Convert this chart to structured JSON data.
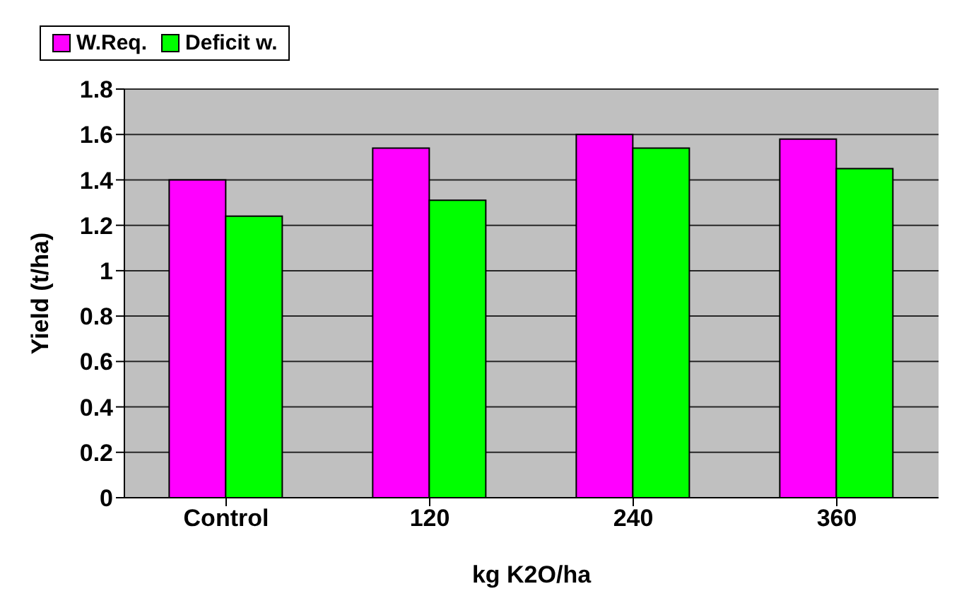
{
  "chart_data": {
    "type": "bar",
    "xlabel": "kg K2O/ha",
    "ylabel": "Yield (t/ha)",
    "categories": [
      "Control",
      "120",
      "240",
      "360"
    ],
    "series": [
      {
        "name": "W.Req.",
        "color": "#ff00ff",
        "values": [
          1.4,
          1.54,
          1.6,
          1.58
        ]
      },
      {
        "name": "Deficit w.",
        "color": "#00ff00",
        "values": [
          1.24,
          1.31,
          1.54,
          1.45
        ]
      }
    ],
    "ylim": [
      0,
      1.8
    ],
    "yticks": [
      0,
      0.2,
      0.4,
      0.6,
      0.8,
      1,
      1.2,
      1.4,
      1.6,
      1.8
    ],
    "grid": "y",
    "legend": "top"
  }
}
